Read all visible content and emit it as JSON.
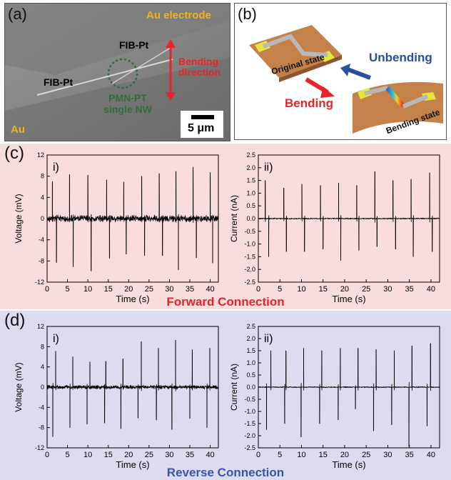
{
  "panel_a": {
    "label": "(a)",
    "au_electrode": "Au electrode",
    "au": "Au",
    "fib_pt_top": "FIB-Pt",
    "fib_pt_left": "FIB-Pt",
    "bending": "Bending",
    "direction": "direction",
    "nw_line1": "PMN-PT",
    "nw_line2": "single NW",
    "scale": "5 μm",
    "colors": {
      "au": "#f2b21b",
      "bending": "#e8242a",
      "nw": "#2e6e38"
    }
  },
  "panel_b": {
    "label": "(b)",
    "original": "Original state",
    "unbending": "Unbending",
    "bending": "Bending",
    "bending_state": "Bending state",
    "colors": {
      "unbending": "#2b4ea0",
      "bending": "#e8242a",
      "substrate": "#c4824a"
    }
  },
  "panel_c": {
    "label": "(c)",
    "caption": "Forward Connection",
    "caption_color": "#e8242a",
    "bg": "#f9dcdc"
  },
  "panel_d": {
    "label": "(d)",
    "caption": "Reverse Connection",
    "caption_color": "#3a55a8",
    "bg": "#dcdcee"
  },
  "chart_data": [
    {
      "id": "c-i",
      "type": "line",
      "panel_label": "i)",
      "xlabel": "Time (s)",
      "ylabel": "Voltage (mV)",
      "xlim": [
        0,
        42
      ],
      "ylim": [
        -12,
        12
      ],
      "xticks": [
        0,
        5,
        10,
        15,
        20,
        25,
        30,
        35,
        40
      ],
      "yticks": [
        -12,
        -8,
        -4,
        0,
        4,
        8,
        12
      ],
      "noise": 1.0,
      "peaks": [
        [
          1.3,
          7.0
        ],
        [
          5.5,
          8.3
        ],
        [
          10.0,
          8.2
        ],
        [
          14.6,
          7.3
        ],
        [
          18.8,
          6.9
        ],
        [
          23.2,
          8.0
        ],
        [
          27.5,
          8.5
        ],
        [
          31.6,
          8.9
        ],
        [
          35.8,
          9.7
        ],
        [
          40.0,
          8.7
        ]
      ],
      "troughs": [
        [
          2.3,
          -8.3
        ],
        [
          6.4,
          -9.1
        ],
        [
          10.8,
          -9.9
        ],
        [
          15.3,
          -7.5
        ],
        [
          19.4,
          -6.7
        ],
        [
          23.9,
          -7.0
        ],
        [
          28.3,
          -7.0
        ],
        [
          32.2,
          -9.7
        ],
        [
          36.6,
          -7.4
        ],
        [
          40.6,
          -8.4
        ]
      ]
    },
    {
      "id": "c-ii",
      "type": "line",
      "panel_label": "ii)",
      "xlabel": "Time (s)",
      "ylabel": "Current (nA)",
      "xlim": [
        0,
        42
      ],
      "ylim": [
        -2.5,
        2.5
      ],
      "xticks": [
        0,
        5,
        10,
        15,
        20,
        25,
        30,
        35,
        40
      ],
      "yticks": [
        -2.5,
        -2.0,
        -1.5,
        -1.0,
        -0.5,
        0.0,
        0.5,
        1.0,
        1.5,
        2.0,
        2.5
      ],
      "noise": 0.04,
      "peaks": [
        [
          1.6,
          1.5
        ],
        [
          5.9,
          1.2
        ],
        [
          10.1,
          1.35
        ],
        [
          14.4,
          1.3
        ],
        [
          18.6,
          1.4
        ],
        [
          22.8,
          1.3
        ],
        [
          27.0,
          1.85
        ],
        [
          31.2,
          1.5
        ],
        [
          35.4,
          1.55
        ],
        [
          39.7,
          1.8
        ]
      ],
      "troughs": [
        [
          2.4,
          -1.5
        ],
        [
          6.5,
          -1.3
        ],
        [
          10.7,
          -1.3
        ],
        [
          15.0,
          -1.2
        ],
        [
          19.1,
          -1.65
        ],
        [
          23.3,
          -1.25
        ],
        [
          27.5,
          -1.1
        ],
        [
          31.8,
          -1.2
        ],
        [
          35.9,
          -1.5
        ],
        [
          40.3,
          -1.3
        ]
      ]
    },
    {
      "id": "d-i",
      "type": "line",
      "panel_label": "i)",
      "xlabel": "Time (s)",
      "ylabel": "Voltage (mV)",
      "xlim": [
        0,
        42
      ],
      "ylim": [
        -12,
        12
      ],
      "xticks": [
        0,
        5,
        10,
        15,
        20,
        25,
        30,
        35,
        40
      ],
      "yticks": [
        -12,
        -8,
        -4,
        0,
        4,
        8,
        12
      ],
      "noise": 0.6,
      "peaks": [
        [
          2.1,
          7.1
        ],
        [
          6.3,
          6.0
        ],
        [
          10.5,
          5.0
        ],
        [
          14.4,
          5.1
        ],
        [
          18.6,
          5.6
        ],
        [
          23.1,
          9.0
        ],
        [
          27.3,
          7.7
        ],
        [
          31.5,
          9.3
        ],
        [
          35.6,
          7.4
        ],
        [
          39.9,
          7.7
        ]
      ],
      "troughs": [
        [
          1.4,
          -9.8
        ],
        [
          5.6,
          -8.0
        ],
        [
          9.8,
          -7.3
        ],
        [
          14.1,
          -7.1
        ],
        [
          18.1,
          -8.2
        ],
        [
          22.3,
          -6.1
        ],
        [
          26.8,
          -6.5
        ],
        [
          30.6,
          -8.4
        ],
        [
          35.0,
          -6.2
        ],
        [
          39.2,
          -8.0
        ]
      ]
    },
    {
      "id": "d-ii",
      "type": "line",
      "panel_label": "ii)",
      "xlabel": "Time (s)",
      "ylabel": "Current (nA)",
      "xlim": [
        0,
        42
      ],
      "ylim": [
        -2.5,
        2.5
      ],
      "xticks": [
        0,
        5,
        10,
        15,
        20,
        25,
        30,
        35,
        40
      ],
      "yticks": [
        -2.5,
        -2.0,
        -1.5,
        -1.0,
        -0.5,
        0.0,
        0.5,
        1.0,
        1.5,
        2.0,
        2.5
      ],
      "noise": 0.035,
      "peaks": [
        [
          2.9,
          1.5
        ],
        [
          6.4,
          1.5
        ],
        [
          10.5,
          1.6
        ],
        [
          14.7,
          1.5
        ],
        [
          19.0,
          1.6
        ],
        [
          23.1,
          1.6
        ],
        [
          27.3,
          1.55
        ],
        [
          31.5,
          1.5
        ],
        [
          35.6,
          1.7
        ],
        [
          39.9,
          1.8
        ]
      ],
      "troughs": [
        [
          1.9,
          -1.75
        ],
        [
          6.1,
          -1.5
        ],
        [
          9.9,
          -2.05
        ],
        [
          14.2,
          -1.5
        ],
        [
          18.5,
          -1.35
        ],
        [
          22.5,
          -0.9
        ],
        [
          26.7,
          -1.8
        ],
        [
          30.9,
          -1.55
        ],
        [
          34.9,
          -2.45
        ],
        [
          39.1,
          -1.6
        ]
      ]
    }
  ]
}
